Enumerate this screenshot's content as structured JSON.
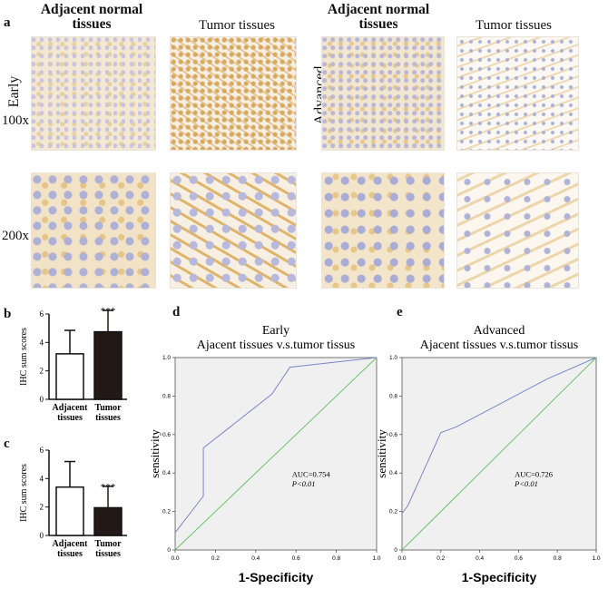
{
  "panel_a": {
    "letter": "a",
    "headers": {
      "adjacent_1": "Adjacent normal tissues",
      "tumor_1": "Tumor tissues",
      "adjacent_2": "Adjacent normal tissues",
      "tumor_2": "Tumor tissues"
    },
    "group_labels": {
      "early": "Early",
      "advanced": "Advanced"
    },
    "magnifications": {
      "row1": "100x",
      "row2": "200x"
    }
  },
  "chart_data": [
    {
      "panel": "b",
      "type": "bar",
      "categories": [
        "Adjacent tissues",
        "Tumor tissues"
      ],
      "values": [
        3.2,
        4.75
      ],
      "errors": [
        1.65,
        1.5
      ],
      "fills": [
        "#ffffff",
        "#231815"
      ],
      "significance": [
        "",
        "***"
      ],
      "ylabel": "IHC sum scores",
      "ylim": [
        0,
        6
      ],
      "yticks": [
        "0",
        "2",
        "4",
        "6"
      ]
    },
    {
      "panel": "c",
      "type": "bar",
      "categories": [
        "Adjacent tissues",
        "Tumor tissues"
      ],
      "values": [
        3.4,
        1.95
      ],
      "errors": [
        1.8,
        1.5
      ],
      "fills": [
        "#ffffff",
        "#231815"
      ],
      "significance": [
        "",
        "***"
      ],
      "ylabel": "IHC sum scores",
      "ylim": [
        0,
        6
      ],
      "yticks": [
        "0",
        "2",
        "4",
        "6"
      ]
    },
    {
      "panel": "d",
      "type": "line",
      "title": "Early",
      "subtitle": "Ajacent tissues v.s.tumor tissus",
      "xlabel": "1-Specificity",
      "ylabel": "sensitivity",
      "xlim": [
        0,
        1
      ],
      "ylim": [
        0,
        1
      ],
      "xticks": [
        "0.0",
        "0.2",
        "0.4",
        "0.6",
        "0.8",
        "1.0"
      ],
      "yticks": [
        "0",
        "0.2",
        "0.4",
        "0.6",
        "0.8",
        "1.0"
      ],
      "grid": false,
      "series": [
        {
          "color": "#7b86c8",
          "x": [
            0,
            0.14,
            0.14,
            0.48,
            0.57,
            1.0
          ],
          "y": [
            0.09,
            0.28,
            0.53,
            0.81,
            0.95,
            1.0
          ]
        },
        {
          "color": "#6cc26c",
          "x": [
            0,
            1
          ],
          "y": [
            0,
            1
          ]
        }
      ],
      "annotations": [
        "AUC=0.754",
        "P<0.01"
      ]
    },
    {
      "panel": "e",
      "type": "line",
      "title": "Advanced",
      "subtitle": "Ajacent tissues v.s.tumor tissus",
      "xlabel": "1-Specificity",
      "ylabel": "sensitivity",
      "xlim": [
        0,
        1
      ],
      "ylim": [
        0,
        1
      ],
      "xticks": [
        "0.0",
        "0.2",
        "0.4",
        "0.6",
        "0.8",
        "1.0"
      ],
      "yticks": [
        "0",
        "0.2",
        "0.4",
        "0.6",
        "0.8",
        "1.0"
      ],
      "grid": false,
      "series": [
        {
          "color": "#7b86c8",
          "x": [
            0,
            0.03,
            0.2,
            0.28,
            0.75,
            1.0
          ],
          "y": [
            0.19,
            0.23,
            0.61,
            0.64,
            0.89,
            1.0
          ]
        },
        {
          "color": "#6cc26c",
          "x": [
            0,
            1
          ],
          "y": [
            0,
            1
          ]
        }
      ],
      "annotations": [
        "AUC=0.726",
        "P<0.01"
      ]
    }
  ]
}
